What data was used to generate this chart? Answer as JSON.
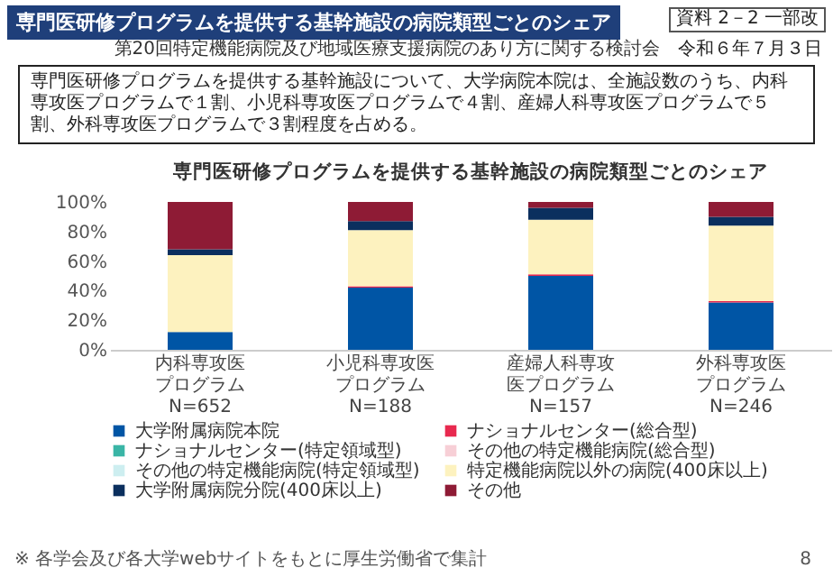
{
  "chart_data": {
    "type": "bar",
    "stacked": true,
    "title": "専門医研修プログラムを提供する基幹施設の病院類型ごとのシェア",
    "annotations": [
      "専門医研修プログラムを提供する基幹施設の病院類型ごとのシェア",
      "第20回特定機能病院及び地域医療支援病院のあり方に関する検討会",
      "令和６年７月３日",
      "資料 2－2 一部改",
      "専門医研修プログラムを提供する基幹施設について、大学病院本院は、全施設数のうち、内科専攻医プログラムで１割、小児科専攻医プログラムで４割、産婦人科専攻医プログラムで５割、外科専攻医プログラムで３割程度を占める。",
      "※ 各学会及び各大学webサイトをもとに厚生労働省で集計",
      "8"
    ],
    "categories": [
      "内科専攻医プログラム\nN=652",
      "小児科専攻医プログラム\nN=188",
      "産婦人科専攻医プログラム\nN=157",
      "外科専攻医プログラム\nN=246"
    ],
    "series": [
      {
        "name": "大学附属病院本院",
        "color": "#0055a5",
        "values": [
          12,
          42,
          50,
          32
        ]
      },
      {
        "name": "ナショナルセンター(総合型)",
        "color": "#e8294f",
        "values": [
          0,
          1,
          1,
          1
        ]
      },
      {
        "name": "ナショナルセンター(特定領域型)",
        "color": "#3ab5a6",
        "values": [
          0,
          0,
          0,
          0
        ]
      },
      {
        "name": "その他の特定機能病院(総合型)",
        "color": "#f7cfd6",
        "values": [
          0,
          0,
          0,
          0
        ]
      },
      {
        "name": "その他の特定機能病院(特定領域型)",
        "color": "#cdeef0",
        "values": [
          0,
          0,
          0,
          0
        ]
      },
      {
        "name": "特定機能病院以外の病院(400床以上)",
        "color": "#fdf2bf",
        "values": [
          52,
          38,
          37,
          51
        ]
      },
      {
        "name": "大学附属病院分院(400床以上)",
        "color": "#0b2f5e",
        "values": [
          4,
          6,
          8,
          6
        ]
      },
      {
        "name": "その他",
        "color": "#8e1b35",
        "values": [
          32,
          13,
          4,
          10
        ]
      }
    ],
    "ylim": [
      0,
      100
    ],
    "yticks": [
      {
        "value": 0,
        "label": "0%"
      },
      {
        "value": 20,
        "label": "20%"
      },
      {
        "value": 40,
        "label": "40%"
      },
      {
        "value": 60,
        "label": "60%"
      },
      {
        "value": 80,
        "label": "80%"
      },
      {
        "value": 100,
        "label": "100%"
      }
    ],
    "grid": false,
    "legend": "bottom"
  }
}
